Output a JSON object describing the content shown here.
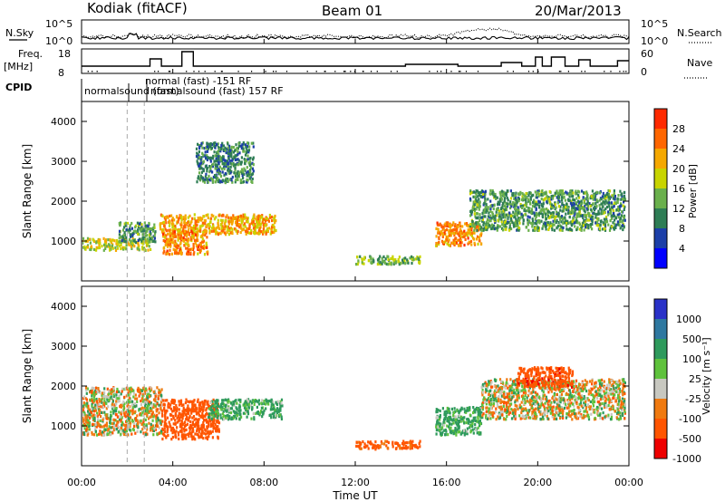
{
  "header": {
    "station": "Kodiak (fitACF)",
    "beam": "Beam 01",
    "date": "20/Mar/2013"
  },
  "strips": {
    "nsky_label": "N.Sky",
    "nsearch_label": "N.Search",
    "noise_ticks": [
      "10^5",
      "10^0"
    ],
    "noise_ticks_right": [
      "10^5",
      "10^0"
    ],
    "freq_label": "Freq.",
    "freq_unit": "[MHz]",
    "freq_ticks": [
      "18",
      "8"
    ],
    "nave_label": "Nave",
    "nave_ticks": [
      "60",
      "0"
    ],
    "cpid_label": "CPID",
    "cpid_names": [
      "normalsound (fast)",
      "normal (fast)  -151 RF",
      "normalsound (fast)  157 RF",
      "normalsound (fast)  157 RF"
    ]
  },
  "colorbars": {
    "power": {
      "label": "Power [dB]",
      "ticks": [
        "4",
        "8",
        "12",
        "16",
        "20",
        "24",
        "28"
      ],
      "colors": [
        "#0000ff",
        "#1c3fa8",
        "#2e7d55",
        "#6ab04c",
        "#c8d400",
        "#f5a800",
        "#ff6600",
        "#ff2a00"
      ]
    },
    "velocity": {
      "label": "Velocity [m s⁻¹]",
      "ticks": [
        "1000",
        "500",
        "100",
        "25",
        "-25",
        "-100",
        "-500",
        "-1000"
      ],
      "colors": [
        "#2a32c8",
        "#2e78a0",
        "#2e9a5c",
        "#5fc23c",
        "#c8c8c0",
        "#f07a10",
        "#ff5500",
        "#ee0000"
      ]
    }
  },
  "chart_data": [
    {
      "type": "heatmap",
      "panel": "power",
      "ylabel": "Slant Range [km]",
      "yticks": [
        "1000",
        "2000",
        "3000",
        "4000"
      ],
      "ylim": [
        0,
        4500
      ],
      "xticks": [
        "00:00",
        "04:00",
        "08:00",
        "12:00",
        "16:00",
        "20:00",
        "00:00"
      ],
      "xlim_hours": [
        0,
        24
      ],
      "unit": "dB",
      "regions": [
        {
          "t": [
            0.0,
            3.0
          ],
          "r": [
            800,
            1100
          ],
          "value": 18
        },
        {
          "t": [
            1.6,
            3.2
          ],
          "r": [
            1000,
            1500
          ],
          "value": 12
        },
        {
          "t": [
            3.4,
            8.5
          ],
          "r": [
            1200,
            1700
          ],
          "value": 22
        },
        {
          "t": [
            3.5,
            5.5
          ],
          "r": [
            700,
            1300
          ],
          "value": 24
        },
        {
          "t": [
            5.0,
            7.5
          ],
          "r": [
            2500,
            3500
          ],
          "value": 10
        },
        {
          "t": [
            12.0,
            14.8
          ],
          "r": [
            450,
            650
          ],
          "value": 14
        },
        {
          "t": [
            15.5,
            17.5
          ],
          "r": [
            900,
            1500
          ],
          "value": 24
        },
        {
          "t": [
            17.0,
            23.8
          ],
          "r": [
            1300,
            2300
          ],
          "value": 12
        }
      ]
    },
    {
      "type": "heatmap",
      "panel": "velocity",
      "ylabel": "Slant Range [km]",
      "yticks": [
        "1000",
        "2000",
        "3000",
        "4000"
      ],
      "ylim": [
        0,
        4500
      ],
      "xticks": [
        "00:00",
        "04:00",
        "08:00",
        "12:00",
        "16:00",
        "20:00",
        "00:00"
      ],
      "xlim_hours": [
        0,
        24
      ],
      "xlabel": "Time UT",
      "unit": "m/s",
      "regions": [
        {
          "t": [
            0.0,
            3.5
          ],
          "r": [
            800,
            2000
          ],
          "value": 0
        },
        {
          "t": [
            3.5,
            6.0
          ],
          "r": [
            700,
            1700
          ],
          "value": -300
        },
        {
          "t": [
            5.5,
            8.8
          ],
          "r": [
            1200,
            1700
          ],
          "value": 150
        },
        {
          "t": [
            12.0,
            14.8
          ],
          "r": [
            450,
            650
          ],
          "value": -200
        },
        {
          "t": [
            15.5,
            17.5
          ],
          "r": [
            800,
            1500
          ],
          "value": 150
        },
        {
          "t": [
            17.5,
            23.8
          ],
          "r": [
            1200,
            2200
          ],
          "value": 0
        },
        {
          "t": [
            19.0,
            21.5
          ],
          "r": [
            2000,
            2500
          ],
          "value": -400
        }
      ]
    }
  ]
}
